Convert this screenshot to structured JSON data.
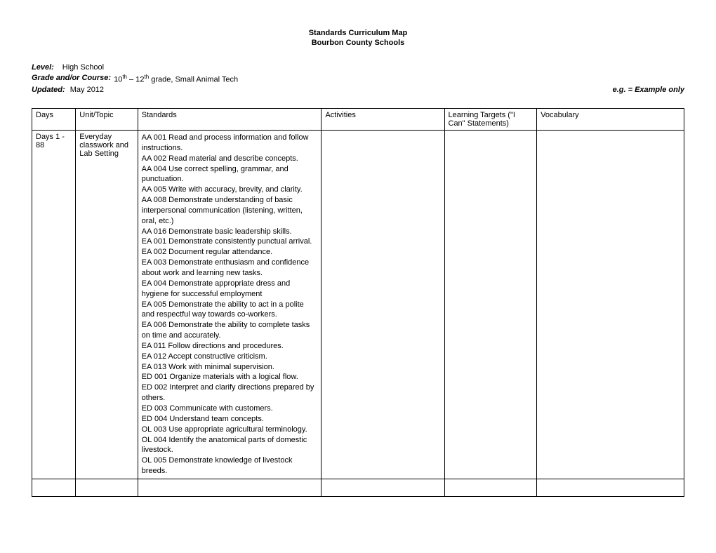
{
  "title": {
    "line1": "Standards Curriculum Map",
    "line2": "Bourbon County Schools"
  },
  "meta": {
    "level_label": "Level:",
    "level_value": "High School",
    "grade_label": "Grade and/or Course:",
    "grade_value_prefix": "10",
    "grade_value_mid": " – 12",
    "grade_value_suffix": " grade, Small Animal Tech",
    "grade_sup": "th",
    "updated_label": "Updated:",
    "updated_value": "May 2012",
    "example_note": "e.g. = Example only"
  },
  "table": {
    "headers": {
      "days": "Days",
      "unit": "Unit/Topic",
      "standards": "Standards",
      "activities": "Activities",
      "targets": "Learning Targets (\"I Can\" Statements)",
      "vocab": "Vocabulary"
    },
    "row1": {
      "days": "Days 1 - 88",
      "unit": "Everyday classwork and Lab Setting",
      "standards": [
        "AA 001 Read and process information and follow instructions.",
        "AA 002 Read material and describe concepts.",
        "AA 004 Use correct spelling, grammar, and punctuation.",
        "AA 005 Write with accuracy, brevity, and clarity.",
        "AA 008 Demonstrate understanding of basic interpersonal communication (listening, written, oral, etc.)",
        "AA 016 Demonstrate basic leadership skills.",
        "EA 001 Demonstrate consistently punctual arrival.",
        "EA 002 Document regular attendance.",
        "EA 003 Demonstrate enthusiasm and confidence about work and learning new tasks.",
        "EA 004 Demonstrate appropriate dress and hygiene for successful employment",
        "EA 005 Demonstrate the ability to act in a polite and respectful way towards co-workers.",
        "EA 006 Demonstrate the ability to complete tasks on time and accurately.",
        "EA 011 Follow directions and procedures.",
        "EA 012 Accept constructive criticism.",
        "EA 013 Work with minimal supervision.",
        "ED 001 Organize materials with a logical flow.",
        "ED 002 Interpret and clarify directions prepared by others.",
        "ED 003 Communicate with customers.",
        "ED 004 Understand team concepts.",
        "OL 003 Use appropriate agricultural terminology.",
        "OL 004 Identify the anatomical parts of domestic livestock.",
        "OL 005 Demonstrate knowledge of livestock breeds."
      ],
      "activities": "",
      "targets": "",
      "vocab": ""
    }
  }
}
